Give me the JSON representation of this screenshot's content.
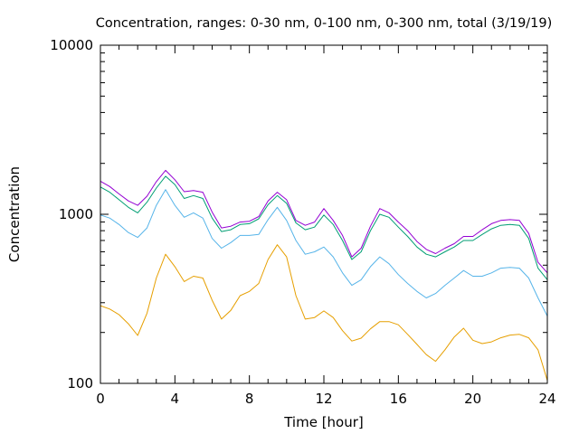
{
  "chart_data": {
    "type": "line",
    "title": "Concentration, ranges: 0-30 nm, 0-100 nm, 0-300 nm, total (3/19/19)",
    "xlabel": "Time [hour]",
    "ylabel": "Concentration",
    "xlim": [
      0,
      24
    ],
    "ylim": [
      100,
      10000
    ],
    "yscale": "log",
    "grid": false,
    "x_ticks": [
      0,
      4,
      8,
      12,
      16,
      20,
      24
    ],
    "x_tick_labels": [
      "0",
      "4",
      "8",
      "12",
      "16",
      "20",
      "24"
    ],
    "y_ticks": [
      100,
      1000,
      10000
    ],
    "y_tick_labels": [
      "100",
      "1000",
      "10000"
    ],
    "x": [
      0,
      0.5,
      1,
      1.5,
      2,
      2.5,
      3,
      3.5,
      4,
      4.5,
      5,
      5.5,
      6,
      6.5,
      7,
      7.5,
      8,
      8.5,
      9,
      9.5,
      10,
      10.5,
      11,
      11.5,
      12,
      12.5,
      13,
      13.5,
      14,
      14.5,
      15,
      15.5,
      16,
      16.5,
      17,
      17.5,
      18,
      18.5,
      19,
      19.5,
      20,
      20.5,
      21,
      21.5,
      22,
      22.5,
      23,
      23.5,
      24
    ],
    "series": [
      {
        "color": "#e69f00",
        "values": [
          288,
          275,
          255,
          225,
          192,
          260,
          420,
          580,
          490,
          400,
          430,
          420,
          310,
          240,
          270,
          330,
          350,
          390,
          540,
          660,
          560,
          330,
          240,
          245,
          268,
          245,
          205,
          178,
          185,
          210,
          232,
          232,
          222,
          195,
          170,
          148,
          135,
          158,
          188,
          212,
          180,
          172,
          176,
          186,
          193,
          195,
          186,
          158,
          104
        ]
      },
      {
        "color": "#56b4e9",
        "values": [
          990,
          950,
          870,
          780,
          730,
          830,
          1130,
          1400,
          1130,
          960,
          1020,
          950,
          720,
          630,
          680,
          750,
          750,
          760,
          930,
          1100,
          920,
          700,
          580,
          600,
          640,
          560,
          450,
          380,
          410,
          490,
          560,
          510,
          440,
          390,
          350,
          320,
          340,
          380,
          420,
          465,
          430,
          430,
          450,
          480,
          485,
          480,
          420,
          320,
          250
        ]
      },
      {
        "color": "#009e73",
        "values": [
          1450,
          1350,
          1220,
          1100,
          1020,
          1180,
          1430,
          1680,
          1500,
          1240,
          1290,
          1240,
          950,
          790,
          810,
          870,
          880,
          940,
          1140,
          1290,
          1160,
          890,
          810,
          840,
          990,
          870,
          700,
          540,
          600,
          800,
          1000,
          960,
          840,
          740,
          640,
          580,
          560,
          600,
          640,
          700,
          700,
          760,
          820,
          860,
          870,
          860,
          720,
          480,
          410
        ]
      },
      {
        "color": "#9400d3",
        "values": [
          1570,
          1460,
          1320,
          1200,
          1130,
          1280,
          1560,
          1820,
          1600,
          1360,
          1380,
          1350,
          1030,
          830,
          850,
          900,
          910,
          970,
          1200,
          1350,
          1220,
          920,
          860,
          900,
          1080,
          920,
          750,
          560,
          630,
          850,
          1080,
          1020,
          900,
          800,
          690,
          620,
          585,
          630,
          670,
          740,
          740,
          810,
          880,
          920,
          930,
          920,
          770,
          520,
          450
        ]
      }
    ]
  }
}
